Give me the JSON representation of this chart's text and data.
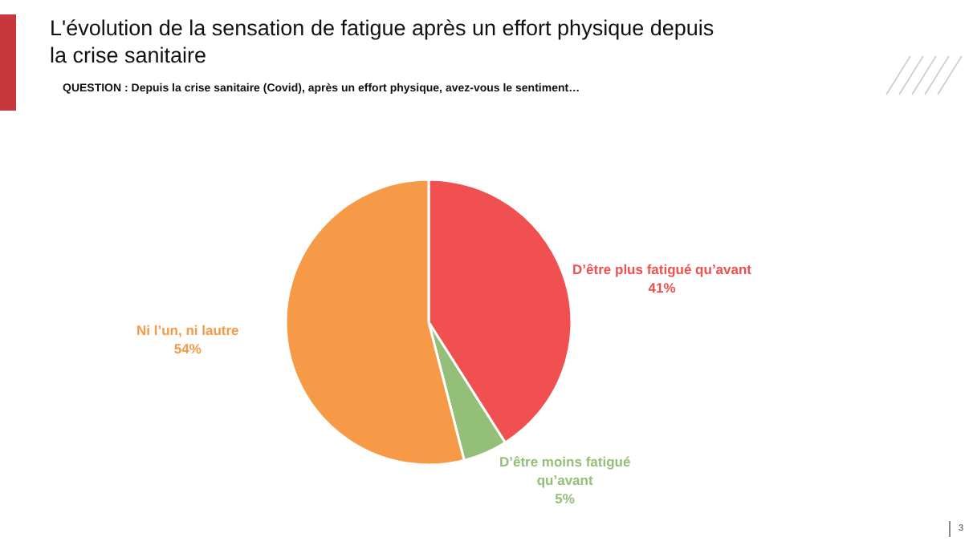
{
  "chart_data": {
    "type": "pie",
    "title": "L'évolution de la sensation de fatigue après un effort physique depuis la crise sanitaire",
    "subtitle": "QUESTION : Depuis la crise sanitaire (Covid), après un effort physique, avez-vous le sentiment…",
    "categories": [
      "D’être plus fatigué qu’avant",
      "D’être moins fatigué qu’avant",
      "Ni l’un, ni lautre"
    ],
    "values": [
      41,
      5,
      54
    ],
    "colors": [
      "#f05050",
      "#93bf78",
      "#f79a48"
    ],
    "value_labels": [
      "41%",
      "5%",
      "54%"
    ],
    "legend": false,
    "annotations": [
      "3"
    ]
  }
}
